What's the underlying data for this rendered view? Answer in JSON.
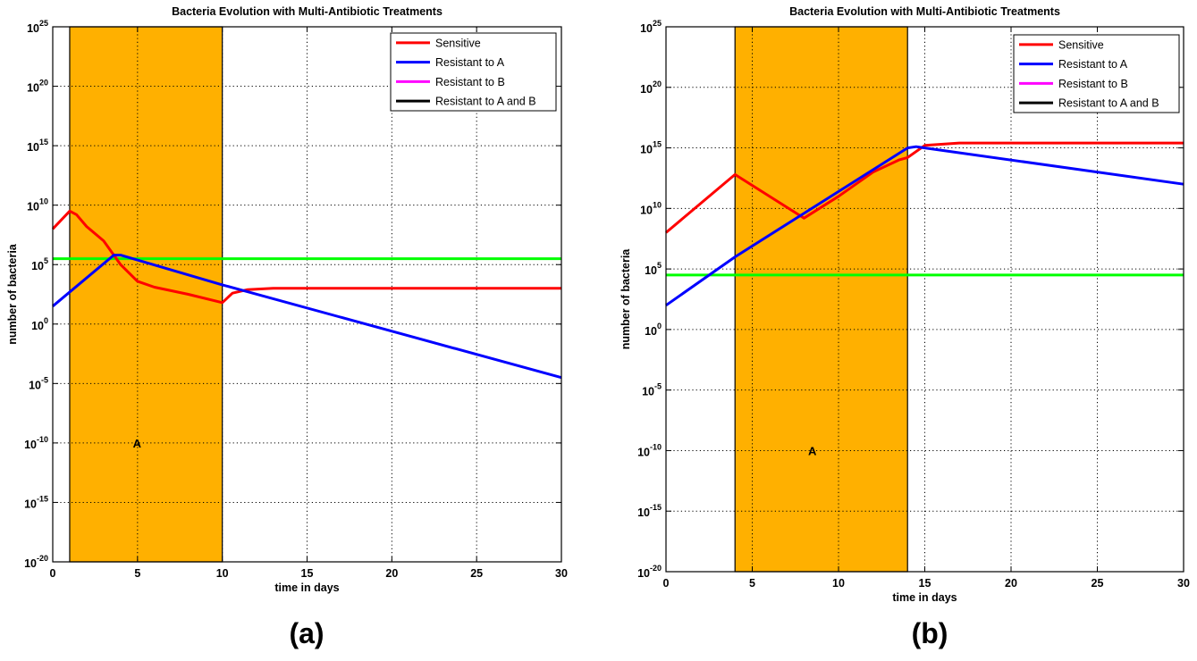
{
  "colors": {
    "sensitive": "#ff0000",
    "resistant_a": "#0000ff",
    "resistant_b": "#ff00ff",
    "resistant_ab": "#000000",
    "threshold": "#00ff00",
    "treatment_region": "#ffb000"
  },
  "chart_data": [
    {
      "type": "line",
      "panel_label": "(a)",
      "title": "Bacteria Evolution with Multi-Antibiotic Treatments",
      "xlabel": "time in days",
      "ylabel": "number of bacteria",
      "xlim": [
        0,
        30
      ],
      "ylim_log10": [
        -20,
        25
      ],
      "y_scale": "log",
      "x_ticks": [
        "0",
        "5",
        "10",
        "15",
        "20",
        "25",
        "30"
      ],
      "y_ticks": [
        {
          "base": "10",
          "exp": "25"
        },
        {
          "base": "10",
          "exp": "20"
        },
        {
          "base": "10",
          "exp": "15"
        },
        {
          "base": "10",
          "exp": "10"
        },
        {
          "base": "10",
          "exp": "5"
        },
        {
          "base": "10",
          "exp": "0"
        },
        {
          "base": "10",
          "exp": "-5"
        },
        {
          "base": "10",
          "exp": "-10"
        },
        {
          "base": "10",
          "exp": "-15"
        },
        {
          "base": "10",
          "exp": "-20"
        }
      ],
      "grid": true,
      "legend_position": "top-right",
      "legend": [
        "Sensitive",
        "Resistant to A",
        "Resistant to B",
        "Resistant to A and B"
      ],
      "treatment_region": {
        "label": "A",
        "x_start": 1,
        "x_end": 10
      },
      "threshold_log10": 5.5,
      "series": [
        {
          "name": "Sensitive",
          "color_key": "sensitive",
          "x": [
            0,
            1,
            1.4,
            2,
            3,
            4,
            5,
            6,
            8,
            10,
            10.6,
            11.5,
            13,
            15,
            20,
            25,
            30
          ],
          "log10_y": [
            8,
            9.5,
            9.2,
            8.2,
            7,
            5,
            3.6,
            3.1,
            2.5,
            1.8,
            2.6,
            2.9,
            3.0,
            3.0,
            3.0,
            3.0,
            3.0
          ]
        },
        {
          "name": "Resistant to A",
          "color_key": "resistant_a",
          "x": [
            0,
            3.6,
            4,
            10,
            30
          ],
          "log10_y": [
            1.5,
            5.8,
            5.8,
            3.3,
            -4.5
          ]
        },
        {
          "name": "Resistant to B",
          "color_key": "resistant_b",
          "x": [],
          "log10_y": []
        },
        {
          "name": "Resistant to A and B",
          "color_key": "resistant_ab",
          "x": [],
          "log10_y": []
        }
      ]
    },
    {
      "type": "line",
      "panel_label": "(b)",
      "title": "Bacteria Evolution with Multi-Antibiotic Treatments",
      "xlabel": "time in days",
      "ylabel": "number of bacteria",
      "xlim": [
        0,
        30
      ],
      "ylim_log10": [
        -20,
        25
      ],
      "y_scale": "log",
      "x_ticks": [
        "0",
        "5",
        "10",
        "15",
        "20",
        "25",
        "30"
      ],
      "y_ticks": [
        {
          "base": "10",
          "exp": "25"
        },
        {
          "base": "10",
          "exp": "20"
        },
        {
          "base": "10",
          "exp": "15"
        },
        {
          "base": "10",
          "exp": "10"
        },
        {
          "base": "10",
          "exp": "5"
        },
        {
          "base": "10",
          "exp": "0"
        },
        {
          "base": "10",
          "exp": "-5"
        },
        {
          "base": "10",
          "exp": "-10"
        },
        {
          "base": "10",
          "exp": "-15"
        },
        {
          "base": "10",
          "exp": "-20"
        }
      ],
      "grid": true,
      "legend_position": "top-right",
      "legend": [
        "Sensitive",
        "Resistant to A",
        "Resistant to B",
        "Resistant to A and B"
      ],
      "treatment_region": {
        "label": "A",
        "x_start": 4,
        "x_end": 14
      },
      "threshold_log10": 4.5,
      "series": [
        {
          "name": "Sensitive",
          "color_key": "sensitive",
          "x": [
            0,
            4,
            8,
            10,
            12,
            13.5,
            14,
            15,
            17,
            20,
            25,
            30
          ],
          "log10_y": [
            8,
            12.8,
            9.2,
            11,
            13,
            14,
            14.2,
            15.2,
            15.4,
            15.4,
            15.4,
            15.4
          ]
        },
        {
          "name": "Resistant to A",
          "color_key": "resistant_a",
          "x": [
            0,
            4,
            14,
            14.5,
            15,
            30
          ],
          "log10_y": [
            2,
            6,
            15,
            15.1,
            15,
            12
          ]
        },
        {
          "name": "Resistant to B",
          "color_key": "resistant_b",
          "x": [],
          "log10_y": []
        },
        {
          "name": "Resistant to A and B",
          "color_key": "resistant_ab",
          "x": [],
          "log10_y": []
        }
      ]
    }
  ]
}
